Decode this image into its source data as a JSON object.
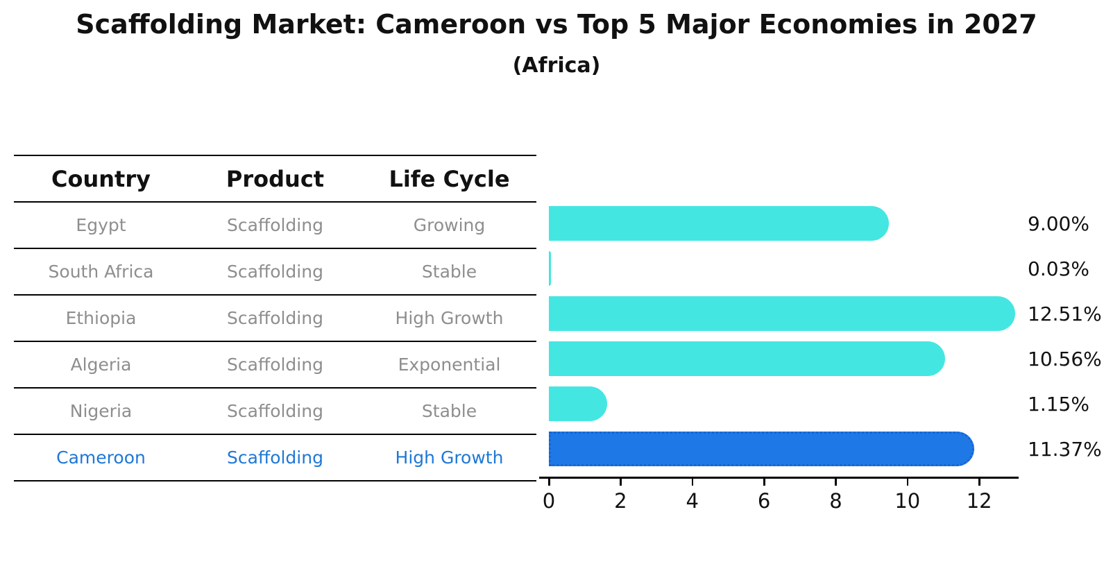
{
  "title": "Scaffolding Market: Cameroon vs Top 5 Major Economies in 2027",
  "subtitle": "(Africa)",
  "table": {
    "headers": [
      "Country",
      "Product",
      "Life Cycle"
    ],
    "rows": [
      {
        "country": "Egypt",
        "product": "Scaffolding",
        "life_cycle": "Growing"
      },
      {
        "country": "South Africa",
        "product": "Scaffolding",
        "life_cycle": "Stable"
      },
      {
        "country": "Ethiopia",
        "product": "Scaffolding",
        "life_cycle": "High Growth"
      },
      {
        "country": "Algeria",
        "product": "Scaffolding",
        "life_cycle": "Exponential"
      },
      {
        "country": "Nigeria",
        "product": "Scaffolding",
        "life_cycle": "Stable"
      },
      {
        "country": "Cameroon",
        "product": "Scaffolding",
        "life_cycle": "High Growth"
      }
    ],
    "highlight_row_index": 5
  },
  "chart_data": {
    "type": "bar",
    "orientation": "horizontal",
    "title": "Scaffolding Market: Cameroon vs Top 5 Major Economies in 2027",
    "subtitle": "(Africa)",
    "categories": [
      "Egypt",
      "South Africa",
      "Ethiopia",
      "Algeria",
      "Nigeria",
      "Cameroon"
    ],
    "values": [
      9.0,
      0.03,
      12.51,
      10.56,
      1.15,
      11.37
    ],
    "value_labels": [
      "9.00%",
      "0.03%",
      "12.51%",
      "10.56%",
      "1.15%",
      "11.37%"
    ],
    "xticks": [
      "0",
      "2",
      "4",
      "6",
      "8",
      "10",
      "12"
    ],
    "xtick_values": [
      0,
      2,
      4,
      6,
      8,
      10,
      12
    ],
    "xlim": [
      0,
      13.1
    ],
    "grid": false,
    "legend": false,
    "highlight_index": 5,
    "colors": {
      "default_bar": "#44e6e2",
      "highlight_bar": "#1e78e6",
      "highlight_border": "#1565d2",
      "row_text": "#8e8e8e",
      "highlight_text": "#1e78d6",
      "axis": "#000000"
    }
  }
}
